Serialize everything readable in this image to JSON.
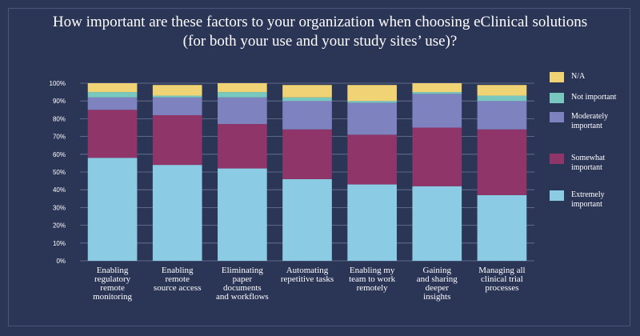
{
  "title_lines": [
    "How important are these factors to your organization when choosing eClinical solutions",
    "(for both your use and your study sites’ use)?"
  ],
  "colors": {
    "Extremely important": "#8ccbe4",
    "Somewhat important": "#8f3569",
    "Moderately important": "#7e83bf",
    "Not important": "#79c8bf",
    "N/A": "#f0d374"
  },
  "chart_data": {
    "type": "bar",
    "stacked": true,
    "title": "How important are these factors to your organization when choosing eClinical solutions (for both your use and your study sites’ use)?",
    "categories": [
      [
        "Enabling",
        "regulatory",
        "remote",
        "monitoring"
      ],
      [
        "Enabling",
        "remote",
        "source access"
      ],
      [
        "Eliminating",
        "paper",
        "documents",
        "and workflows"
      ],
      [
        "Automating",
        "repetitive tasks"
      ],
      [
        "Enabling my",
        "team to work",
        "remotely"
      ],
      [
        "Gaining",
        "and sharing",
        "deeper",
        "insights"
      ],
      [
        "Managing all",
        "clinical trial",
        "processes"
      ]
    ],
    "series": [
      {
        "name": "Extremely important",
        "values": [
          58,
          54,
          52,
          46,
          43,
          42,
          37
        ]
      },
      {
        "name": "Somewhat important",
        "values": [
          27,
          28,
          25,
          28,
          28,
          33,
          37
        ]
      },
      {
        "name": "Moderately important",
        "values": [
          7,
          10,
          15,
          16,
          18,
          19,
          16
        ]
      },
      {
        "name": "Not important",
        "values": [
          3,
          1,
          3,
          2,
          1,
          1,
          3
        ]
      },
      {
        "name": "N/A",
        "values": [
          5,
          6,
          5,
          7,
          9,
          5,
          6
        ]
      }
    ],
    "legend_order": [
      "N/A",
      "Not important",
      "Moderately important",
      "Somewhat important",
      "Extremely important"
    ],
    "legend_labels": {
      "N/A": [
        "N/A"
      ],
      "Not important": [
        "Not important"
      ],
      "Moderately important": [
        "Moderately",
        "important"
      ],
      "Somewhat important": [
        "Somewhat",
        "important"
      ],
      "Extremely important": [
        "Extremely",
        "important"
      ]
    },
    "y_ticks": [
      "0%",
      "10%",
      "20%",
      "30%",
      "40%",
      "50%",
      "60%",
      "70%",
      "80%",
      "90%",
      "100%"
    ],
    "ylim": [
      0,
      100
    ],
    "grid": true,
    "legend_position": "right"
  }
}
